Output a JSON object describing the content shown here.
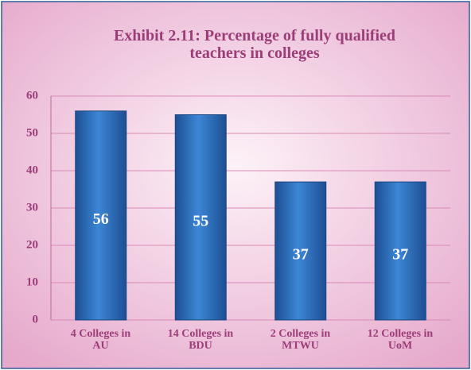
{
  "chart_data": {
    "type": "bar",
    "title": "Exhibit 2.11: Percentage of fully qualified\nteachers in colleges",
    "categories": [
      "4 Colleges in\nAU",
      "14 Colleges in\nBDU",
      "2 Colleges in\nMTWU",
      "12 Colleges in\nUoM"
    ],
    "values": [
      56,
      55,
      37,
      37
    ],
    "color": "#2a64b4",
    "ylim": [
      0,
      60
    ],
    "yticks": [
      0,
      10,
      20,
      30,
      40,
      50,
      60
    ],
    "grid": true
  }
}
